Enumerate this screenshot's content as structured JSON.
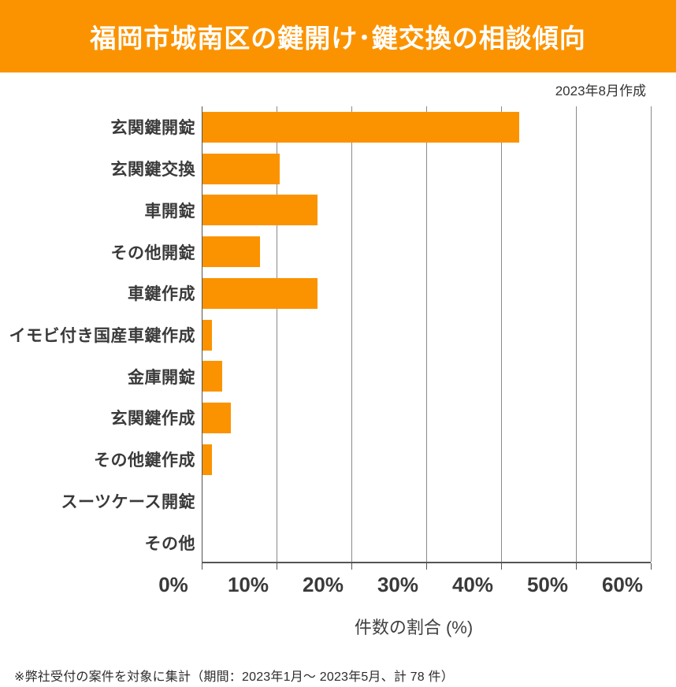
{
  "header": {
    "title": "福岡市城南区の鍵開け･鍵交換の相談傾向",
    "created_date": "2023年8月作成"
  },
  "chart_data": {
    "type": "bar",
    "orientation": "horizontal",
    "title": "福岡市城南区の鍵開け･鍵交換の相談傾向",
    "categories": [
      "玄関鍵開錠",
      "玄関鍵交換",
      "車開錠",
      "その他開錠",
      "車鍵作成",
      "イモビ付き国産車鍵作成",
      "金庫開錠",
      "玄関鍵作成",
      "その他鍵作成",
      "スーツケース開錠",
      "その他"
    ],
    "values": [
      42.3,
      10.3,
      15.4,
      7.7,
      15.4,
      1.3,
      2.6,
      3.8,
      1.3,
      0,
      0
    ],
    "xlabel": "件数の割合 (%)",
    "xlim": [
      0,
      60
    ],
    "x_tick_values": [
      0,
      10,
      20,
      30,
      40,
      50,
      60
    ],
    "x_tick_labels": [
      "0%",
      "10%",
      "20%",
      "30%",
      "40%",
      "50%",
      "60%"
    ],
    "grid": "vertical-gridlines-on",
    "legend": "none"
  },
  "footer": {
    "note": "※弊社受付の案件を対象に集計（期間：2023年1月～ 2023年5月、計 78 件）"
  },
  "colors": {
    "accent_orange": "#FB9300",
    "bar_orange": "#FB9300",
    "text_dark": "#3A3A3A",
    "gridline_gray": "#8A8A8A",
    "axis_gray": "#555555"
  }
}
